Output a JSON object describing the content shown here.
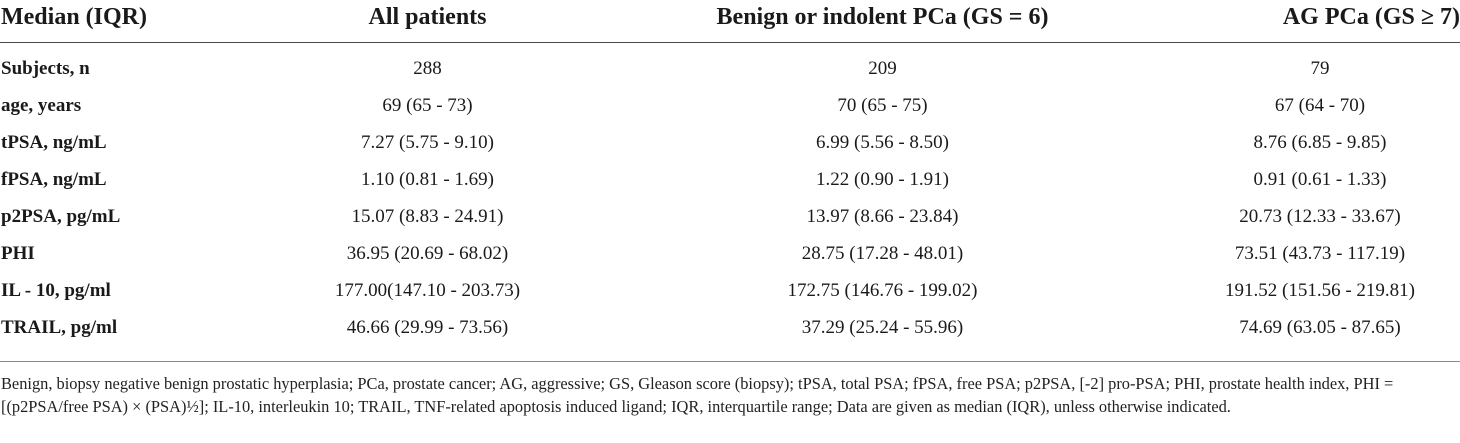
{
  "table": {
    "headers": [
      "Median (IQR)",
      "All patients",
      "Benign or indolent PCa (GS = 6)",
      "AG PCa (GS ≥ 7)"
    ],
    "rows": [
      {
        "label": "Subjects, n",
        "all": "288",
        "benign": "209",
        "ag": "79"
      },
      {
        "label": "age, years",
        "all": "69 (65 - 73)",
        "benign": "70 (65 - 75)",
        "ag": "67 (64 - 70)"
      },
      {
        "label": "tPSA, ng/mL",
        "all": "7.27 (5.75 - 9.10)",
        "benign": "6.99 (5.56 - 8.50)",
        "ag": "8.76 (6.85 - 9.85)"
      },
      {
        "label": "fPSA, ng/mL",
        "all": "1.10 (0.81 - 1.69)",
        "benign": "1.22 (0.90 - 1.91)",
        "ag": "0.91 (0.61 - 1.33)"
      },
      {
        "label": "p2PSA, pg/mL",
        "all": "15.07 (8.83 - 24.91)",
        "benign": "13.97 (8.66 - 23.84)",
        "ag": "20.73 (12.33 - 33.67)"
      },
      {
        "label": "PHI",
        "all": "36.95 (20.69 - 68.02)",
        "benign": "28.75 (17.28 - 48.01)",
        "ag": "73.51 (43.73 - 117.19)"
      },
      {
        "label": "IL - 10, pg/ml",
        "all": "177.00(147.10 - 203.73)",
        "benign": "172.75 (146.76 - 199.02)",
        "ag": "191.52 (151.56 - 219.81)"
      },
      {
        "label": "TRAIL, pg/ml",
        "all": "46.66 (29.99 - 73.56)",
        "benign": "37.29 (25.24 - 55.96)",
        "ag": "74.69 (63.05 - 87.65)"
      }
    ],
    "footnote": "Benign, biopsy negative benign prostatic hyperplasia; PCa, prostate cancer; AG, aggressive; GS, Gleason score (biopsy); tPSA, total PSA; fPSA, free PSA; p2PSA, [-2] pro-PSA; PHI, prostate health index, PHI = [(p2PSA/free PSA) × (PSA)½]; IL-10, interleukin 10; TRAIL, TNF-related apoptosis induced ligand; IQR, interquartile range; Data are given as median (IQR), unless otherwise indicated."
  }
}
